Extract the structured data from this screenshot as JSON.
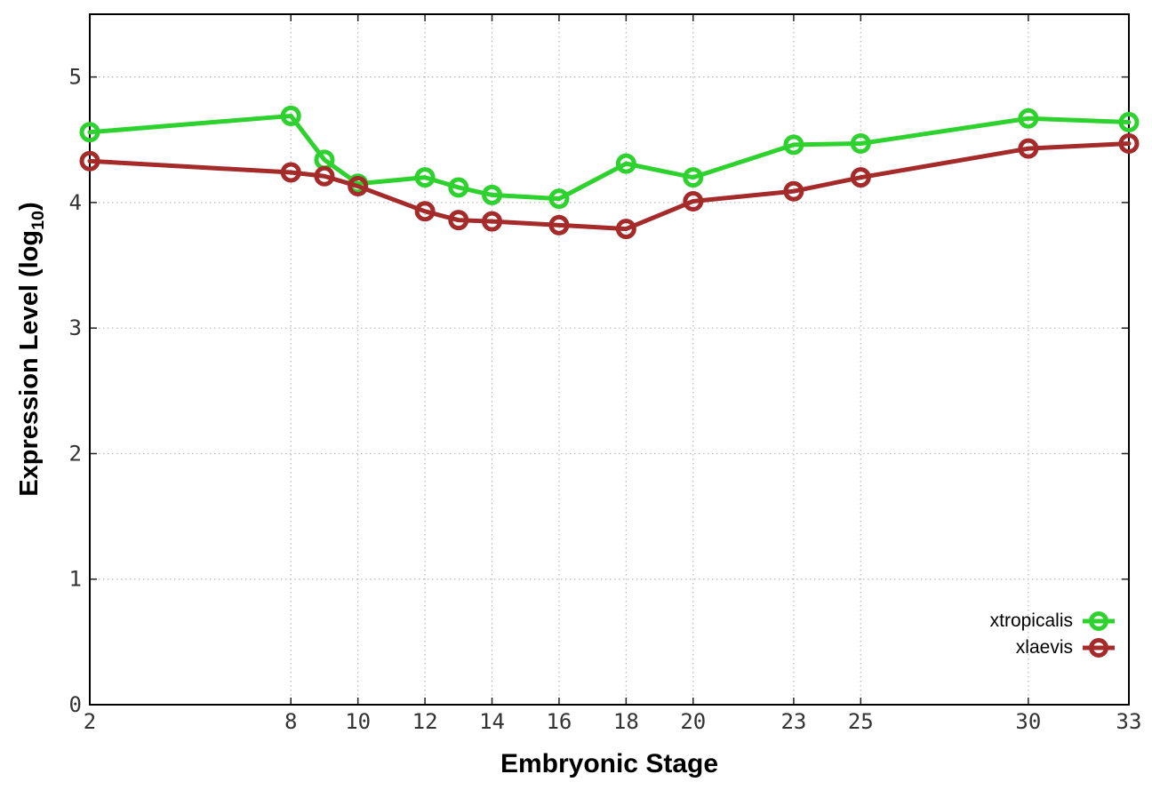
{
  "chart_data": {
    "type": "line",
    "title": "",
    "xlabel": "Embryonic Stage",
    "ylabel_prefix": "Expression Level (log",
    "ylabel_sub": "10",
    "ylabel_suffix": ")",
    "xlim": [
      2,
      33
    ],
    "ylim": [
      0,
      5.5
    ],
    "grid": true,
    "legend_position": "inside-bottom-right",
    "x_ticks": [
      2,
      8,
      10,
      12,
      14,
      16,
      18,
      20,
      23,
      25,
      30,
      33
    ],
    "y_ticks": [
      0,
      1,
      2,
      3,
      4,
      5
    ],
    "x": [
      2,
      8,
      9,
      10,
      12,
      13,
      14,
      16,
      18,
      20,
      23,
      25,
      30,
      33
    ],
    "series": [
      {
        "name": "xtropicalis",
        "color": "#2ed22e",
        "values": [
          4.56,
          4.69,
          4.34,
          4.15,
          4.2,
          4.12,
          4.06,
          4.03,
          4.31,
          4.2,
          4.46,
          4.47,
          4.67,
          4.64
        ]
      },
      {
        "name": "xlaevis",
        "color": "#a52a2a",
        "values": [
          4.33,
          4.24,
          4.21,
          4.13,
          3.93,
          3.86,
          3.85,
          3.82,
          3.79,
          4.01,
          4.09,
          4.2,
          4.43,
          4.47
        ]
      }
    ],
    "colors": {
      "grid": "#b8b8b8",
      "axis": "#000000",
      "tick": "#222222",
      "tick_label": "#333333",
      "background": "#ffffff"
    }
  }
}
